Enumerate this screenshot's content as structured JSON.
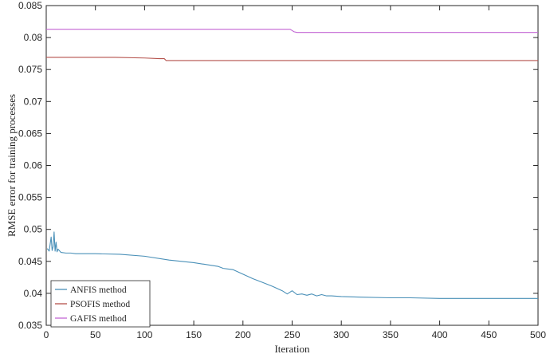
{
  "chart_data": {
    "type": "line",
    "title": "",
    "xlabel": "Iteration",
    "ylabel": "RMSE error for training processes",
    "xlim": [
      0,
      500
    ],
    "ylim": [
      0.035,
      0.085
    ],
    "xticks": [
      0,
      50,
      100,
      150,
      200,
      250,
      300,
      350,
      400,
      450,
      500
    ],
    "yticks": [
      0.035,
      0.04,
      0.045,
      0.05,
      0.055,
      0.06,
      0.065,
      0.07,
      0.075,
      0.08,
      0.085
    ],
    "xtick_labels": [
      "0",
      "50",
      "100",
      "150",
      "200",
      "250",
      "300",
      "350",
      "400",
      "450",
      "500"
    ],
    "ytick_labels": [
      "0.035",
      "0.04",
      "0.045",
      "0.05",
      "0.055",
      "0.06",
      "0.065",
      "0.07",
      "0.075",
      "0.08",
      "0.085"
    ],
    "grid": false,
    "legend_position": "bottom-left",
    "series": [
      {
        "name": "ANFIS method",
        "color": "#4a90b8",
        "x": [
          1,
          3,
          5,
          6,
          7,
          8,
          9,
          10,
          11,
          12,
          15,
          20,
          25,
          30,
          50,
          75,
          100,
          125,
          150,
          175,
          180,
          185,
          190,
          200,
          210,
          220,
          230,
          240,
          245,
          250,
          255,
          260,
          265,
          270,
          275,
          280,
          285,
          290,
          300,
          320,
          350,
          370,
          400,
          450,
          500
        ],
        "y": [
          0.047,
          0.0466,
          0.0488,
          0.0467,
          0.0473,
          0.0496,
          0.0466,
          0.048,
          0.0465,
          0.0469,
          0.0464,
          0.0463,
          0.0463,
          0.0462,
          0.0462,
          0.0461,
          0.0458,
          0.0452,
          0.0448,
          0.0442,
          0.0439,
          0.0438,
          0.0437,
          0.043,
          0.0423,
          0.0417,
          0.0411,
          0.0404,
          0.0399,
          0.0404,
          0.0398,
          0.0399,
          0.0397,
          0.0399,
          0.0396,
          0.0398,
          0.0396,
          0.0396,
          0.0395,
          0.0394,
          0.0393,
          0.0393,
          0.0392,
          0.0392,
          0.0392
        ]
      },
      {
        "name": "PSOFIS method",
        "color": "#b5524c",
        "x": [
          0,
          70,
          100,
          115,
          120,
          122,
          125,
          200,
          300,
          400,
          500
        ],
        "y": [
          0.0769,
          0.0769,
          0.0768,
          0.0767,
          0.0767,
          0.0764,
          0.0764,
          0.0764,
          0.0764,
          0.0764,
          0.0764
        ]
      },
      {
        "name": "GAFIS method",
        "color": "#c266d4",
        "x": [
          0,
          100,
          200,
          248,
          250,
          252,
          255,
          260,
          300,
          400,
          500
        ],
        "y": [
          0.0813,
          0.0813,
          0.0813,
          0.0813,
          0.0811,
          0.0809,
          0.0808,
          0.0808,
          0.0808,
          0.0808,
          0.0808
        ]
      }
    ]
  }
}
